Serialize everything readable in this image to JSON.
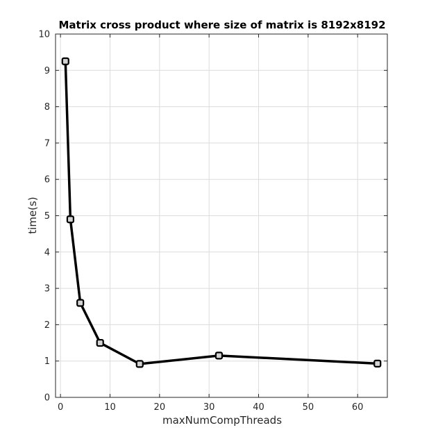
{
  "chart_data": {
    "type": "line",
    "title": "Matrix cross product where size of matrix is 8192x8192",
    "xlabel": "maxNumCompThreads",
    "ylabel": "time(s)",
    "xlim": [
      -1,
      66
    ],
    "ylim": [
      0,
      10
    ],
    "xticks": [
      0,
      10,
      20,
      30,
      40,
      50,
      60
    ],
    "yticks": [
      0,
      1,
      2,
      3,
      4,
      5,
      6,
      7,
      8,
      9,
      10
    ],
    "grid": true,
    "series": [
      {
        "x": [
          1,
          2,
          4,
          8,
          16,
          32,
          64
        ],
        "y": [
          9.25,
          4.9,
          2.6,
          1.5,
          0.92,
          1.15,
          0.93
        ],
        "color": "#000000",
        "marker": "square",
        "marker_fill": "#d3d3d3"
      }
    ]
  }
}
